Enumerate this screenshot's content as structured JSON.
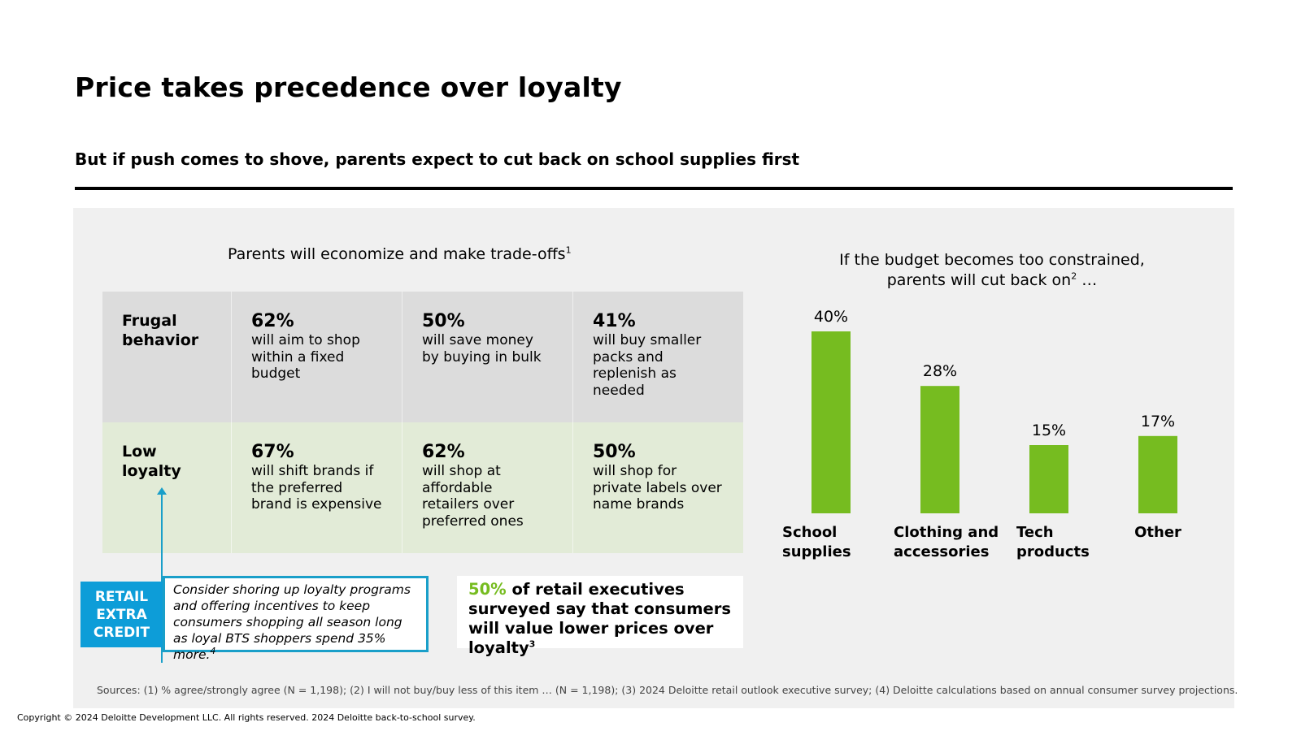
{
  "page": {
    "title": "Price takes precedence over loyalty",
    "subtitle": "But if push comes to shove, parents expect to cut back on school supplies first"
  },
  "left": {
    "heading": "Parents will economize and make trade-offs",
    "heading_sup": "1",
    "rows": [
      {
        "label_line1": "Frugal",
        "label_line2": "behavior",
        "cells": [
          {
            "pct": "62%",
            "text": "will aim to shop within a fixed budget"
          },
          {
            "pct": "50%",
            "text": "will save money by buying in bulk"
          },
          {
            "pct": "41%",
            "text": "will buy smaller packs and replenish as needed"
          }
        ]
      },
      {
        "label_line1": "Low",
        "label_line2": "loyalty",
        "cells": [
          {
            "pct": "67%",
            "text": "will shift brands if the preferred brand is expensive"
          },
          {
            "pct": "62%",
            "text": "will shop at affordable retailers over preferred ones"
          },
          {
            "pct": "50%",
            "text": "will shop for private labels over name brands"
          }
        ]
      }
    ],
    "credit_lines": [
      "RETAIL",
      "EXTRA",
      "CREDIT"
    ],
    "callout": "Consider shoring up loyalty programs and offering incentives to keep consumers shopping all season long as loyal BTS shoppers spend 35% more.",
    "callout_sup": "4",
    "stat_highlight": "50%",
    "stat_text": "of retail executives surveyed say that consumers will value lower prices over loyalty",
    "stat_sup": "3"
  },
  "chart_title_line1": "If the budget becomes too constrained,",
  "chart_title_line2": "parents will cut back on",
  "chart_title_sup": "2",
  "chart_title_tail": " …",
  "chart_data": {
    "type": "bar",
    "categories": [
      [
        "School",
        "supplies"
      ],
      [
        "Clothing and",
        "accessories"
      ],
      [
        "Tech",
        "products"
      ],
      [
        "Other"
      ]
    ],
    "values": [
      40,
      28,
      15,
      17
    ],
    "value_labels": [
      "40%",
      "28%",
      "15%",
      "17%"
    ],
    "bar_color": "#76bc20",
    "grid": false
  },
  "sources": "Sources: (1) % agree/strongly agree (N = 1,198); (2) I will not buy/buy less of this item … (N = 1,198); (3) 2024 Deloitte retail outlook executive survey; (4) Deloitte calculations based on annual consumer survey projections.",
  "copyright": "Copyright © 2024 Deloitte Development LLC. All rights reserved. 2024 Deloitte back-to-school survey."
}
